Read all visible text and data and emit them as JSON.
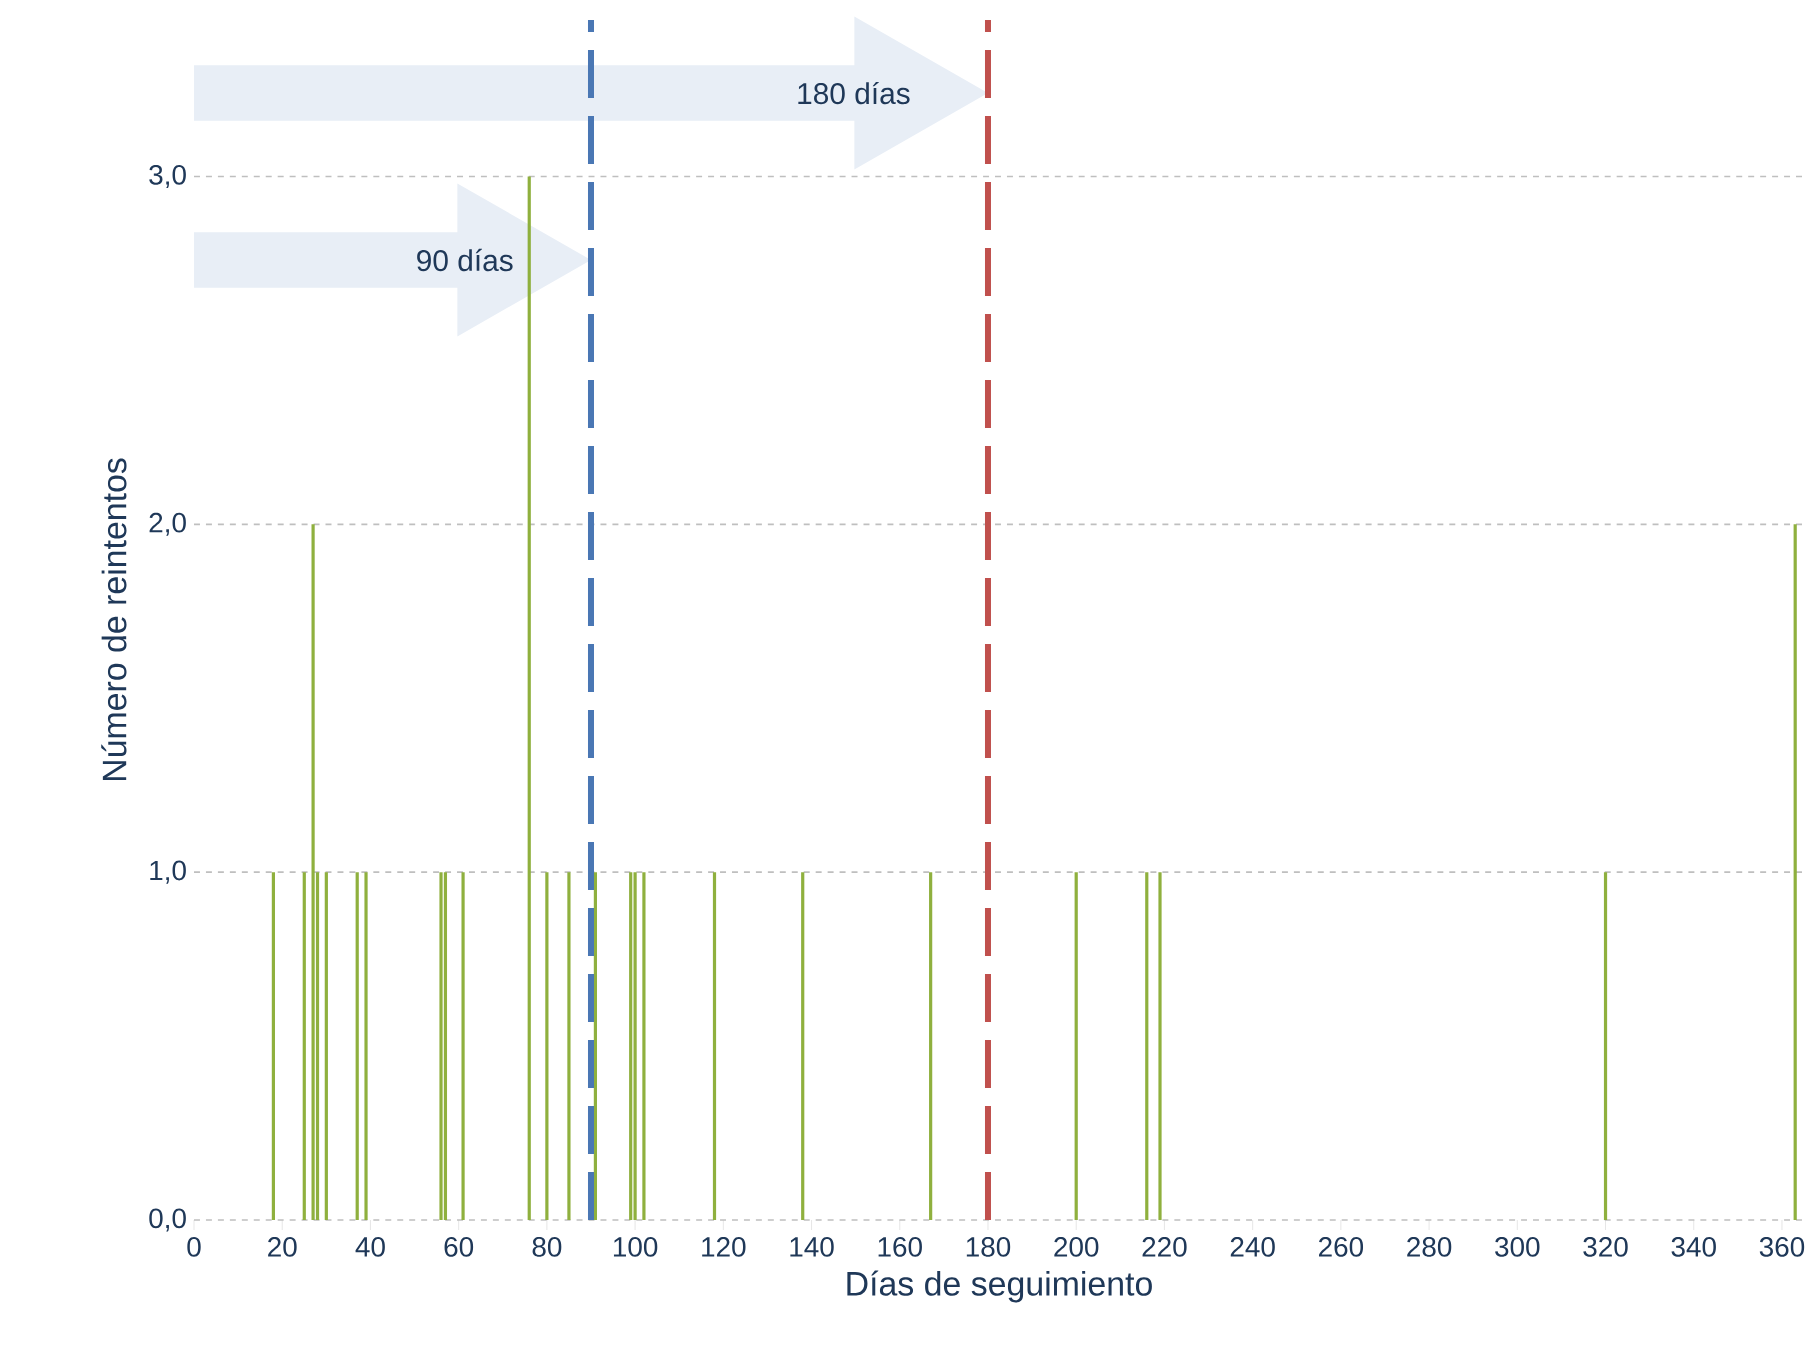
{
  "chart_data": {
    "type": "bar",
    "xlabel": "Días de seguimiento",
    "ylabel": "Número de reintentos",
    "x": [
      18,
      25,
      27,
      28,
      30,
      37,
      39,
      56,
      57,
      61,
      76,
      80,
      85,
      91,
      99,
      100,
      102,
      118,
      138,
      167,
      200,
      216,
      219,
      320,
      363
    ],
    "values": [
      1,
      1,
      2,
      1,
      1,
      1,
      1,
      1,
      1,
      1,
      3,
      1,
      1,
      1,
      1,
      1,
      1,
      1,
      1,
      1,
      1,
      1,
      1,
      1,
      2
    ],
    "color": "#8fb03e",
    "xlim": [
      0,
      365
    ],
    "xticks": [
      0,
      20,
      40,
      60,
      80,
      100,
      120,
      140,
      160,
      180,
      200,
      220,
      240,
      260,
      280,
      300,
      320,
      340,
      360
    ],
    "ylim": [
      0,
      3.45
    ],
    "yticks": [
      {
        "value": 0,
        "label": "0,0"
      },
      {
        "value": 1,
        "label": "1,0"
      },
      {
        "value": 2,
        "label": "2,0"
      },
      {
        "value": 3,
        "label": "3,0"
      }
    ],
    "grid": "y",
    "ref_lines": [
      {
        "axis": "x",
        "value": 90,
        "label": "90 días",
        "color": "#4a77b4",
        "line_style": "dashed"
      },
      {
        "axis": "x",
        "value": 180,
        "label": "180 días",
        "color": "#c0504d",
        "line_style": "dashed"
      }
    ]
  }
}
